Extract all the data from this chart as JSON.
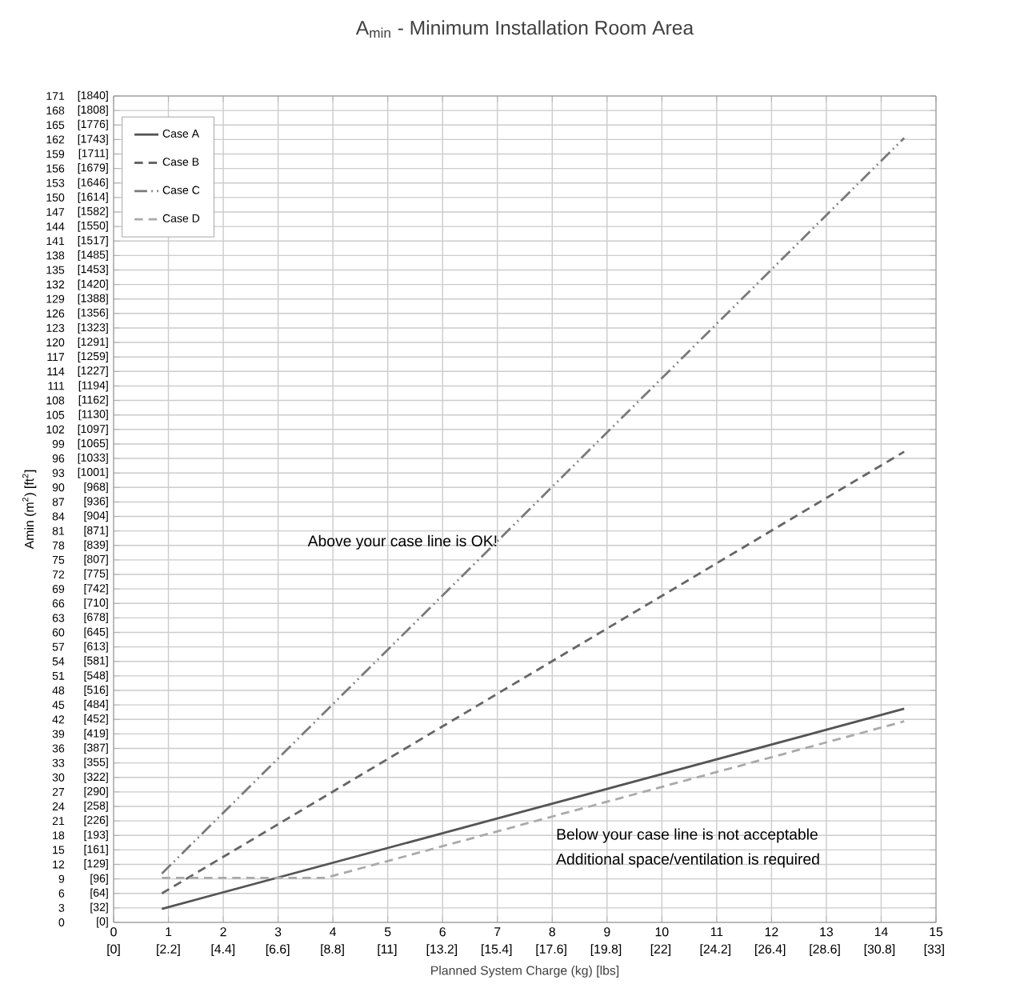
{
  "chart_data": {
    "type": "line",
    "title": "A$_{min}$ - Minimum Installation Room Area",
    "xlabel": "Planned System Charge (kg) [lbs]",
    "ylabel": "Amin (m$^{2}$) [ft$^{2}$]",
    "x": [
      0.88,
      14.42
    ],
    "series": [
      {
        "name": "Case A",
        "color": "#555555",
        "line_style": "solid",
        "values": [
          2.8,
          44.2
        ]
      },
      {
        "name": "Case B",
        "color": "#666666",
        "line_style": "dashed",
        "values": [
          6.0,
          97.4
        ]
      },
      {
        "name": "Case C",
        "color": "#7a7a7a",
        "line_style": "dashdotdotted",
        "values": [
          10.1,
          162.3
        ]
      },
      {
        "name": "Case D",
        "color": "#aaaaaa",
        "line_style": "dashed",
        "x": [
          0.88,
          3.86,
          14.42
        ],
        "values": [
          9.2,
          9.2,
          41.6
        ]
      }
    ],
    "xlim": [
      0,
      15
    ],
    "ylim": [
      0,
      171
    ],
    "xticks": [
      0,
      1,
      2,
      3,
      4,
      5,
      6,
      7,
      8,
      9,
      10,
      11,
      12,
      13,
      14,
      15
    ],
    "x2lim": [
      0,
      33.07
    ],
    "x2ticks": [
      {
        "value": 0,
        "label": "[0]"
      },
      {
        "value": 2.2,
        "label": "[2.2]"
      },
      {
        "value": 4.4,
        "label": "[4.4]"
      },
      {
        "value": 6.6,
        "label": "[6.6]"
      },
      {
        "value": 8.8,
        "label": "[8.8]"
      },
      {
        "value": 11,
        "label": "[11]"
      },
      {
        "value": 13.2,
        "label": "[13.2]"
      },
      {
        "value": 15.4,
        "label": "[15.4]"
      },
      {
        "value": 17.6,
        "label": "[17.6]"
      },
      {
        "value": 19.8,
        "label": "[19.8]"
      },
      {
        "value": 22,
        "label": "[22]"
      },
      {
        "value": 24.2,
        "label": "[24.2]"
      },
      {
        "value": 26.4,
        "label": "[26.4]"
      },
      {
        "value": 28.6,
        "label": "[28.6]"
      },
      {
        "value": 30.8,
        "label": "[30.8]"
      },
      {
        "value": 33,
        "label": "[33]"
      }
    ],
    "yticks": [
      0,
      3,
      6,
      9,
      12,
      15,
      18,
      21,
      24,
      27,
      30,
      33,
      36,
      39,
      42,
      45,
      48,
      51,
      54,
      57,
      60,
      63,
      66,
      69,
      72,
      75,
      78,
      81,
      84,
      87,
      90,
      93,
      96,
      99,
      102,
      105,
      108,
      111,
      114,
      117,
      120,
      123,
      126,
      129,
      132,
      135,
      138,
      141,
      144,
      147,
      150,
      153,
      156,
      159,
      162,
      165,
      168,
      171
    ],
    "y2lim": [
      0,
      1840.6
    ],
    "y2ticks": [
      {
        "value": 0,
        "label": "[0]"
      },
      {
        "value": 32,
        "label": "[32]"
      },
      {
        "value": 64,
        "label": "[64]"
      },
      {
        "value": 96,
        "label": "[96]"
      },
      {
        "value": 129,
        "label": "[129]"
      },
      {
        "value": 161,
        "label": "[161]"
      },
      {
        "value": 193,
        "label": "[193]"
      },
      {
        "value": 226,
        "label": "[226]"
      },
      {
        "value": 258,
        "label": "[258]"
      },
      {
        "value": 290,
        "label": "[290]"
      },
      {
        "value": 322,
        "label": "[322]"
      },
      {
        "value": 355,
        "label": "[355]"
      },
      {
        "value": 387,
        "label": "[387]"
      },
      {
        "value": 419,
        "label": "[419]"
      },
      {
        "value": 452,
        "label": "[452]"
      },
      {
        "value": 484,
        "label": "[484]"
      },
      {
        "value": 516,
        "label": "[516]"
      },
      {
        "value": 548,
        "label": "[548]"
      },
      {
        "value": 581,
        "label": "[581]"
      },
      {
        "value": 613,
        "label": "[613]"
      },
      {
        "value": 645,
        "label": "[645]"
      },
      {
        "value": 678,
        "label": "[678]"
      },
      {
        "value": 710,
        "label": "[710]"
      },
      {
        "value": 742,
        "label": "[742]"
      },
      {
        "value": 775,
        "label": "[775]"
      },
      {
        "value": 807,
        "label": "[807]"
      },
      {
        "value": 839,
        "label": "[839]"
      },
      {
        "value": 871,
        "label": "[871]"
      },
      {
        "value": 904,
        "label": "[904]"
      },
      {
        "value": 936,
        "label": "[936]"
      },
      {
        "value": 968,
        "label": "[968]"
      },
      {
        "value": 1001,
        "label": "[1001]"
      },
      {
        "value": 1033,
        "label": "[1033]"
      },
      {
        "value": 1065,
        "label": "[1065]"
      },
      {
        "value": 1097,
        "label": "[1097]"
      },
      {
        "value": 1130,
        "label": "[1130]"
      },
      {
        "value": 1162,
        "label": "[1162]"
      },
      {
        "value": 1194,
        "label": "[1194]"
      },
      {
        "value": 1227,
        "label": "[1227]"
      },
      {
        "value": 1259,
        "label": "[1259]"
      },
      {
        "value": 1291,
        "label": "[1291]"
      },
      {
        "value": 1323,
        "label": "[1323]"
      },
      {
        "value": 1356,
        "label": "[1356]"
      },
      {
        "value": 1388,
        "label": "[1388]"
      },
      {
        "value": 1420,
        "label": "[1420]"
      },
      {
        "value": 1453,
        "label": "[1453]"
      },
      {
        "value": 1485,
        "label": "[1485]"
      },
      {
        "value": 1517,
        "label": "[1517]"
      },
      {
        "value": 1550,
        "label": "[1550]"
      },
      {
        "value": 1582,
        "label": "[1582]"
      },
      {
        "value": 1614,
        "label": "[1614]"
      },
      {
        "value": 1646,
        "label": "[1646]"
      },
      {
        "value": 1679,
        "label": "[1679]"
      },
      {
        "value": 1711,
        "label": "[1711]"
      },
      {
        "value": 1743,
        "label": "[1743]"
      },
      {
        "value": 1776,
        "label": "[1776]"
      },
      {
        "value": 1808,
        "label": "[1808]"
      },
      {
        "value": 1840,
        "label": "[1840]"
      }
    ],
    "grid": true,
    "legend": "top left",
    "annotations": [
      "Above your case line is OK!",
      "Below your case line is not acceptable",
      "Additional space/ventilation is required"
    ]
  }
}
